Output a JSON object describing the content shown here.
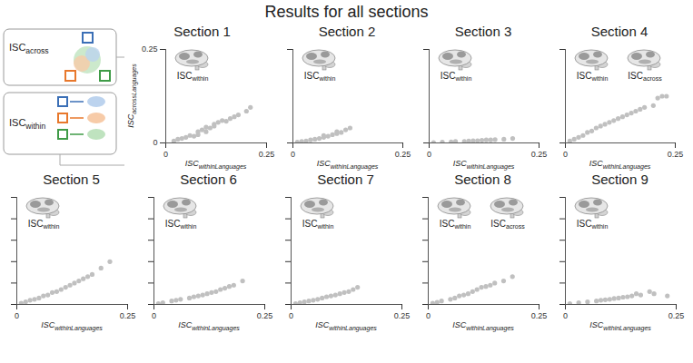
{
  "title": "Results for all sections",
  "schematic": [
    {
      "text": "ISC",
      "sub": "across"
    },
    {
      "text": "ISC",
      "sub": "within"
    }
  ],
  "chart_data": [
    {
      "type": "scatter",
      "title": "Section 1",
      "color": "#c0c0c0",
      "x": [
        0.02,
        0.03,
        0.04,
        0.05,
        0.06,
        0.07,
        0.08,
        0.08,
        0.09,
        0.1,
        0.1,
        0.11,
        0.12,
        0.12,
        0.13,
        0.14,
        0.15,
        0.16,
        0.17,
        0.18,
        0.2,
        0.21
      ],
      "values": [
        0.005,
        0.01,
        0.012,
        0.015,
        0.02,
        0.018,
        0.03,
        0.022,
        0.035,
        0.03,
        0.042,
        0.04,
        0.05,
        0.045,
        0.055,
        0.06,
        0.058,
        0.065,
        0.07,
        0.075,
        0.085,
        0.095
      ],
      "xlim": [
        0,
        0.25
      ],
      "ylim": [
        0,
        0.25
      ],
      "xticks": [
        0,
        0.25
      ],
      "yticks": [
        0,
        0.25
      ],
      "xlabel": {
        "text": "ISC",
        "sub": "withinLanguages"
      },
      "ylabel": {
        "text": "ISC",
        "sub": "acrossLanguages"
      },
      "annotations": [
        {
          "text": "ISC",
          "sub": "within"
        }
      ]
    },
    {
      "type": "scatter",
      "title": "Section 2",
      "color": "#c0c0c0",
      "x": [
        0.01,
        0.02,
        0.03,
        0.04,
        0.05,
        0.06,
        0.07,
        0.07,
        0.08,
        0.09,
        0.1,
        0.1,
        0.11,
        0.12,
        0.13
      ],
      "values": [
        0.002,
        0.004,
        0.005,
        0.008,
        0.01,
        0.012,
        0.015,
        0.02,
        0.018,
        0.022,
        0.025,
        0.03,
        0.028,
        0.035,
        0.04
      ],
      "xlim": [
        0,
        0.25
      ],
      "ylim": [
        0,
        0.25
      ],
      "xticks": [
        0,
        0.25
      ],
      "yticks": [
        0,
        0.25
      ],
      "tick_labels": "x",
      "xlabel": {
        "text": "ISC",
        "sub": "withinLanguages"
      },
      "annotations": [
        {
          "text": "ISC",
          "sub": "within"
        }
      ]
    },
    {
      "type": "scatter",
      "title": "Section 3",
      "color": "#c0c0c0",
      "x": [
        0.01,
        0.03,
        0.05,
        0.06,
        0.08,
        0.09,
        0.1,
        0.11,
        0.12,
        0.13,
        0.14,
        0.15,
        0.17,
        0.19
      ],
      "values": [
        0.001,
        0.002,
        0.003,
        0.004,
        0.004,
        0.005,
        0.006,
        0.006,
        0.007,
        0.008,
        0.008,
        0.009,
        0.01,
        0.012
      ],
      "xlim": [
        0,
        0.25
      ],
      "ylim": [
        0,
        0.25
      ],
      "xticks": [
        0,
        0.25
      ],
      "yticks": [
        0,
        0.25
      ],
      "tick_labels": "x",
      "xlabel": {
        "text": "ISC",
        "sub": "withinLanguages"
      },
      "annotations": [
        {
          "text": "ISC",
          "sub": "within"
        }
      ]
    },
    {
      "type": "scatter",
      "title": "Section 4",
      "color": "#c0c0c0",
      "x": [
        0.01,
        0.02,
        0.03,
        0.04,
        0.05,
        0.06,
        0.07,
        0.08,
        0.09,
        0.1,
        0.11,
        0.12,
        0.13,
        0.14,
        0.15,
        0.16,
        0.17,
        0.18,
        0.2,
        0.21,
        0.22,
        0.23
      ],
      "values": [
        0.005,
        0.01,
        0.015,
        0.02,
        0.028,
        0.032,
        0.04,
        0.045,
        0.05,
        0.055,
        0.06,
        0.065,
        0.07,
        0.075,
        0.08,
        0.085,
        0.09,
        0.095,
        0.1,
        0.12,
        0.125,
        0.125
      ],
      "xlim": [
        0,
        0.25
      ],
      "ylim": [
        0,
        0.25
      ],
      "xticks": [
        0,
        0.25
      ],
      "yticks": [
        0,
        0.25
      ],
      "tick_labels": "x",
      "xlabel": {
        "text": "ISC",
        "sub": "withinLanguages"
      },
      "annotations": [
        {
          "text": "ISC",
          "sub": "within"
        },
        {
          "text": "ISC",
          "sub": "across"
        }
      ]
    },
    {
      "type": "scatter",
      "title": "Section 5",
      "color": "#c0c0c0",
      "x": [
        0.01,
        0.02,
        0.03,
        0.04,
        0.05,
        0.06,
        0.07,
        0.08,
        0.09,
        0.1,
        0.11,
        0.12,
        0.13,
        0.14,
        0.15,
        0.16,
        0.17,
        0.19,
        0.21
      ],
      "values": [
        0.003,
        0.006,
        0.01,
        0.012,
        0.015,
        0.02,
        0.022,
        0.028,
        0.03,
        0.035,
        0.04,
        0.045,
        0.05,
        0.055,
        0.06,
        0.065,
        0.07,
        0.085,
        0.1
      ],
      "xlim": [
        0,
        0.25
      ],
      "ylim": [
        0,
        0.25
      ],
      "xticks": [
        0,
        0.25
      ],
      "yticks": [
        0,
        0.05,
        0.1,
        0.15,
        0.2,
        0.25
      ],
      "tick_labels": "x",
      "xlabel": {
        "text": "ISC",
        "sub": "withinLanguages"
      },
      "annotations": [
        {
          "text": "ISC",
          "sub": "within"
        }
      ]
    },
    {
      "type": "scatter",
      "title": "Section 6",
      "color": "#c0c0c0",
      "x": [
        0.01,
        0.02,
        0.04,
        0.05,
        0.06,
        0.08,
        0.09,
        0.1,
        0.11,
        0.12,
        0.13,
        0.14,
        0.15,
        0.16,
        0.17,
        0.18,
        0.2
      ],
      "values": [
        0.002,
        0.004,
        0.008,
        0.01,
        0.012,
        0.015,
        0.018,
        0.02,
        0.022,
        0.025,
        0.028,
        0.03,
        0.035,
        0.038,
        0.042,
        0.045,
        0.055
      ],
      "xlim": [
        0,
        0.25
      ],
      "ylim": [
        0,
        0.25
      ],
      "xticks": [
        0,
        0.25
      ],
      "yticks": [
        0,
        0.05,
        0.1,
        0.15,
        0.2,
        0.25
      ],
      "tick_labels": "x",
      "xlabel": {
        "text": "ISC",
        "sub": "withinLanguages"
      },
      "annotations": [
        {
          "text": "ISC",
          "sub": "within"
        }
      ]
    },
    {
      "type": "scatter",
      "title": "Section 7",
      "color": "#c0c0c0",
      "x": [
        0.01,
        0.02,
        0.03,
        0.04,
        0.05,
        0.06,
        0.07,
        0.08,
        0.09,
        0.1,
        0.11,
        0.12,
        0.13,
        0.14,
        0.15
      ],
      "values": [
        0.002,
        0.004,
        0.006,
        0.008,
        0.01,
        0.012,
        0.015,
        0.018,
        0.02,
        0.022,
        0.025,
        0.028,
        0.03,
        0.035,
        0.04
      ],
      "xlim": [
        0,
        0.25
      ],
      "ylim": [
        0,
        0.25
      ],
      "xticks": [
        0,
        0.25
      ],
      "yticks": [
        0,
        0.05,
        0.1,
        0.15,
        0.2,
        0.25
      ],
      "tick_labels": "x",
      "xlabel": {
        "text": "ISC",
        "sub": "withinLanguages"
      },
      "annotations": [
        {
          "text": "ISC",
          "sub": "within"
        }
      ]
    },
    {
      "type": "scatter",
      "title": "Section 8",
      "color": "#c0c0c0",
      "x": [
        0.01,
        0.02,
        0.03,
        0.05,
        0.06,
        0.07,
        0.08,
        0.09,
        0.1,
        0.11,
        0.12,
        0.13,
        0.14,
        0.15,
        0.17,
        0.19
      ],
      "values": [
        0.003,
        0.005,
        0.008,
        0.012,
        0.015,
        0.02,
        0.022,
        0.025,
        0.03,
        0.035,
        0.04,
        0.042,
        0.045,
        0.05,
        0.055,
        0.065
      ],
      "xlim": [
        0,
        0.25
      ],
      "ylim": [
        0,
        0.25
      ],
      "xticks": [
        0,
        0.25
      ],
      "yticks": [
        0,
        0.05,
        0.1,
        0.15,
        0.2,
        0.25
      ],
      "tick_labels": "x",
      "xlabel": {
        "text": "ISC",
        "sub": "withinLanguages"
      },
      "annotations": [
        {
          "text": "ISC",
          "sub": "within"
        },
        {
          "text": "ISC",
          "sub": "across"
        }
      ]
    },
    {
      "type": "scatter",
      "title": "Section 9",
      "color": "#c0c0c0",
      "x": [
        0.01,
        0.03,
        0.05,
        0.07,
        0.08,
        0.09,
        0.1,
        0.11,
        0.12,
        0.13,
        0.14,
        0.15,
        0.16,
        0.17,
        0.19,
        0.2,
        0.23
      ],
      "values": [
        0.002,
        0.004,
        0.006,
        0.008,
        0.01,
        0.011,
        0.012,
        0.014,
        0.015,
        0.017,
        0.018,
        0.02,
        0.025,
        0.022,
        0.03,
        0.025,
        0.02
      ],
      "xlim": [
        0,
        0.25
      ],
      "ylim": [
        0,
        0.25
      ],
      "xticks": [
        0,
        0.25
      ],
      "yticks": [
        0,
        0.05,
        0.1,
        0.15,
        0.2,
        0.25
      ],
      "tick_labels": "x",
      "xlabel": {
        "text": "ISC",
        "sub": "withinLanguages"
      },
      "annotations": [
        {
          "text": "ISC",
          "sub": "within"
        }
      ]
    }
  ]
}
